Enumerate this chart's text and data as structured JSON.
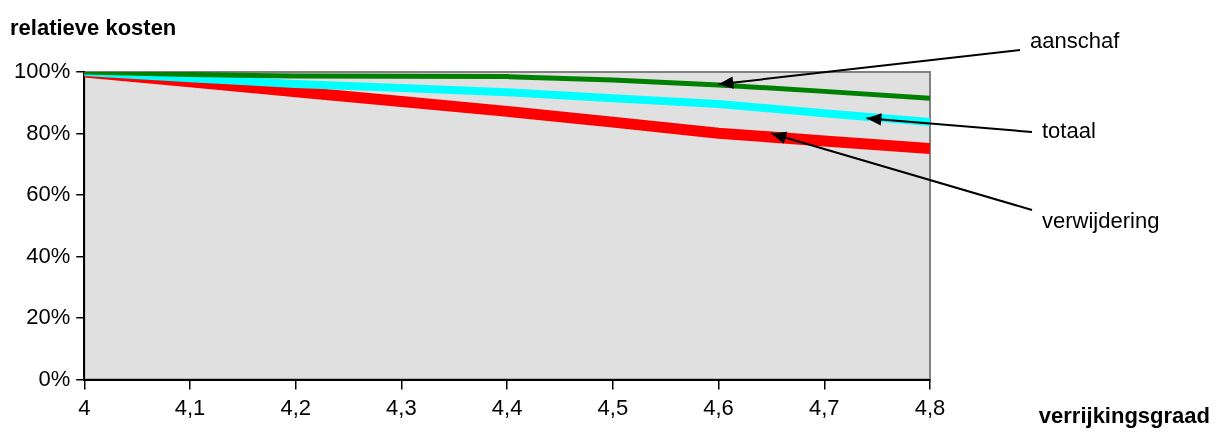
{
  "chart_data": {
    "type": "line",
    "xlabel": "verrijkingsgraad",
    "ylabel": "relatieve kosten",
    "x": [
      4,
      4.1,
      4.2,
      4.3,
      4.4,
      4.5,
      4.6,
      4.7,
      4.8
    ],
    "series": [
      {
        "color": "#008000",
        "values": [
          100,
          99.2,
          98.7,
          98.6,
          98.5,
          97.4,
          95.8,
          93.7,
          91.5
        ]
      },
      {
        "color": "#00ffff",
        "values": [
          100,
          98,
          96.1,
          94.8,
          93.4,
          91.5,
          89.6,
          86.6,
          83.7
        ]
      },
      {
        "color": "#ff0000",
        "values": [
          100,
          96.8,
          93.6,
          90.4,
          87.2,
          83.7,
          80.1,
          77.6,
          75.1
        ]
      }
    ],
    "xlim": [
      4,
      4.8
    ],
    "ylim": [
      0,
      100
    ],
    "xticks": [
      4,
      {
        "value": 4.1,
        "label": "4,1"
      },
      {
        "value": 4.2,
        "label": "4,2"
      },
      {
        "value": 4.3,
        "label": "4,3"
      },
      {
        "value": 4.4,
        "label": "4,4"
      },
      {
        "value": 4.5,
        "label": "4,5"
      },
      {
        "value": 4.6,
        "label": "4,6"
      },
      {
        "value": 4.7,
        "label": "4,7"
      },
      {
        "value": 4.8,
        "label": "4,8"
      }
    ],
    "yticks": [
      {
        "value": 0,
        "label": "0%"
      },
      {
        "value": 20,
        "label": "20%"
      },
      {
        "value": 40,
        "label": "40%"
      },
      {
        "value": 60,
        "label": "60%"
      },
      {
        "value": 80,
        "label": "80%"
      },
      {
        "value": 100,
        "label": "100%"
      }
    ],
    "annotations": [
      {
        "text": "aanschaf",
        "x": 4.6,
        "y": 96
      },
      {
        "text": "totaal",
        "x": 4.74,
        "y": 85
      },
      {
        "text": "verwijdering",
        "x": 4.65,
        "y": 80
      }
    ],
    "grid": false,
    "legend": false,
    "marker": "none",
    "line_style": "solid"
  }
}
